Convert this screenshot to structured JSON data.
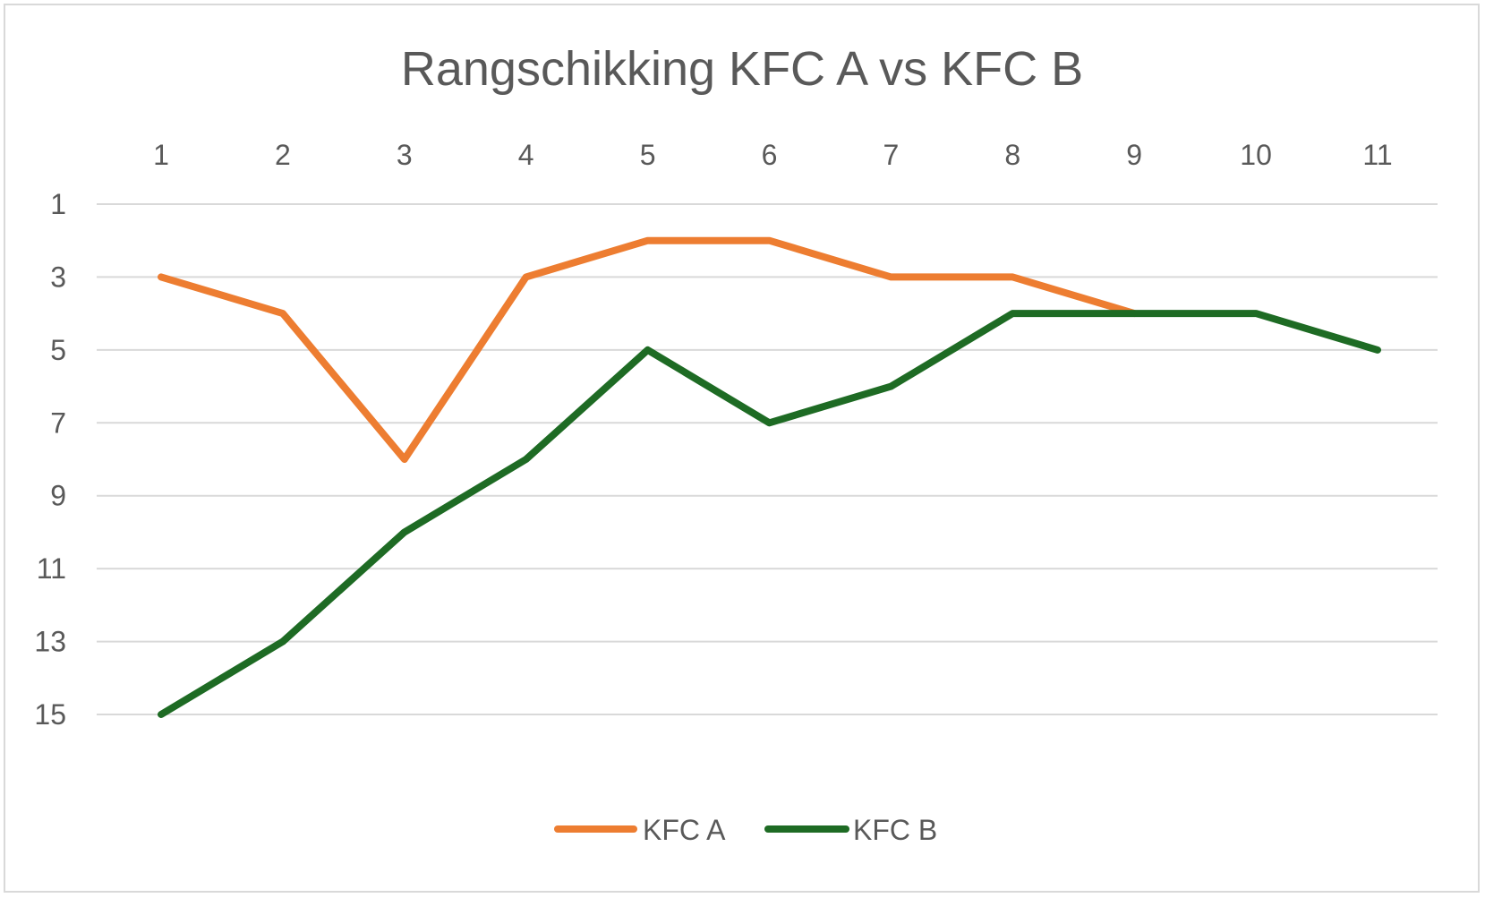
{
  "chart_data": {
    "type": "line",
    "title": "Rangschikking KFC A vs KFC B",
    "x": [
      1,
      2,
      3,
      4,
      5,
      6,
      7,
      8,
      9,
      10,
      11
    ],
    "x_axis_position": "top",
    "y_reversed": true,
    "ylim": [
      1,
      15
    ],
    "yticks": [
      1,
      3,
      5,
      7,
      9,
      11,
      13,
      15
    ],
    "grid": true,
    "legend_position": "bottom",
    "series": [
      {
        "name": "KFC A",
        "color": "#ED7D31",
        "values": [
          3,
          4,
          8,
          3,
          2,
          2,
          3,
          3,
          4,
          null,
          null
        ]
      },
      {
        "name": "KFC B",
        "color": "#1E6B24",
        "values": [
          15,
          13,
          10,
          8,
          5,
          7,
          6,
          4,
          4,
          4,
          5
        ]
      }
    ]
  }
}
